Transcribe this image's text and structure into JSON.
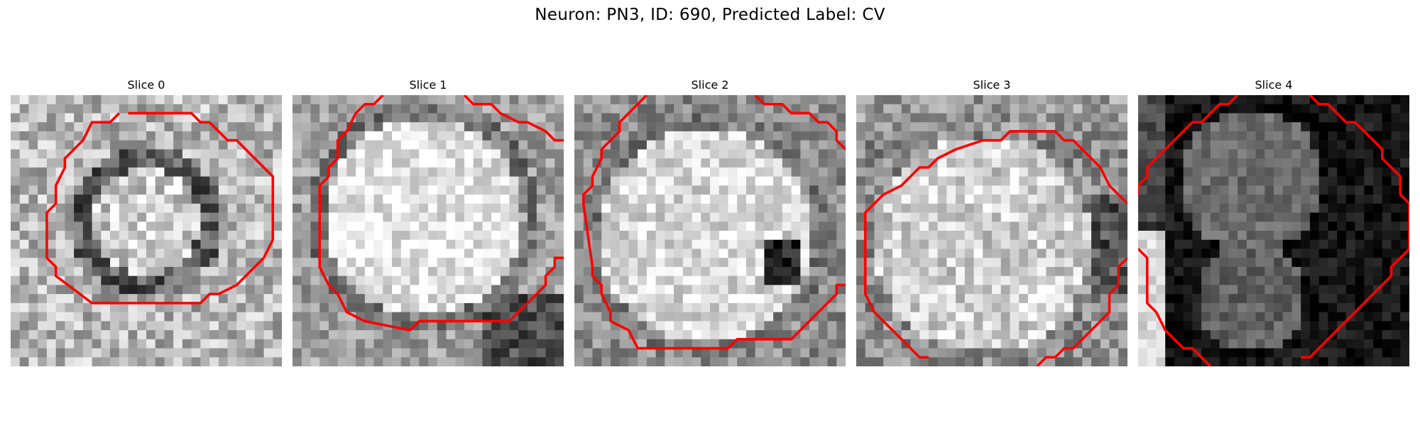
{
  "figure": {
    "title": "Neuron: PN3, ID: 690, Predicted Label: CV"
  },
  "panels": [
    {
      "title": "Slice 0",
      "tone": "light"
    },
    {
      "title": "Slice 1",
      "tone": "light"
    },
    {
      "title": "Slice 2",
      "tone": "light"
    },
    {
      "title": "Slice 3",
      "tone": "light"
    },
    {
      "title": "Slice 4",
      "tone": "dark"
    }
  ],
  "colors": {
    "contour": "#ff0000",
    "colormap": "grayscale"
  }
}
